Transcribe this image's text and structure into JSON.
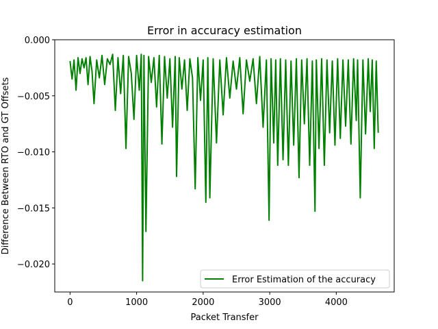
{
  "chart_data": {
    "type": "line",
    "title": "Error in accuracy estimation",
    "xlabel": "Packet Transfer",
    "ylabel": "Difference Between RTO and GT Offsets",
    "xlim": [
      -230,
      4870
    ],
    "ylim": [
      -0.0225,
      0.0
    ],
    "xticks": [
      0,
      1000,
      2000,
      3000,
      4000
    ],
    "xtick_labels": [
      "0",
      "1000",
      "2000",
      "3000",
      "4000"
    ],
    "yticks": [
      0.0,
      -0.005,
      -0.01,
      -0.015,
      -0.02
    ],
    "ytick_labels": [
      "0.000",
      "−0.005",
      "−0.010",
      "−0.015",
      "−0.020"
    ],
    "grid": false,
    "legend_position": "lower-right",
    "series": [
      {
        "name": "Error Estimation of the accuracy",
        "color": "#008000",
        "x": [
          0,
          30,
          60,
          90,
          120,
          150,
          180,
          210,
          240,
          270,
          300,
          330,
          360,
          400,
          440,
          480,
          520,
          560,
          600,
          640,
          680,
          720,
          760,
          800,
          840,
          880,
          920,
          960,
          1000,
          1040,
          1070,
          1090,
          1110,
          1140,
          1180,
          1220,
          1260,
          1300,
          1340,
          1380,
          1420,
          1460,
          1500,
          1540,
          1580,
          1600,
          1640,
          1680,
          1720,
          1760,
          1800,
          1840,
          1880,
          1920,
          1960,
          2000,
          2040,
          2070,
          2100,
          2150,
          2200,
          2250,
          2300,
          2350,
          2400,
          2450,
          2500,
          2550,
          2600,
          2650,
          2700,
          2750,
          2800,
          2850,
          2900,
          2950,
          2990,
          3020,
          3060,
          3090,
          3120,
          3160,
          3200,
          3240,
          3280,
          3320,
          3360,
          3400,
          3440,
          3480,
          3520,
          3560,
          3600,
          3640,
          3680,
          3700,
          3740,
          3780,
          3820,
          3860,
          3900,
          3940,
          3980,
          4020,
          4060,
          4100,
          4140,
          4180,
          4220,
          4260,
          4300,
          4320,
          4360,
          4400,
          4440,
          4480,
          4510,
          4540,
          4570,
          4600,
          4630
        ],
        "y": [
          -0.0019,
          -0.0035,
          -0.0018,
          -0.0045,
          -0.0016,
          -0.003,
          -0.0017,
          -0.0025,
          -0.0016,
          -0.004,
          -0.0015,
          -0.0028,
          -0.0057,
          -0.0018,
          -0.0034,
          -0.0014,
          -0.004,
          -0.0017,
          -0.0022,
          -0.0013,
          -0.0063,
          -0.0016,
          -0.0048,
          -0.0014,
          -0.0097,
          -0.0015,
          -0.003,
          -0.0071,
          -0.0014,
          -0.0045,
          -0.0013,
          -0.0215,
          -0.0014,
          -0.0171,
          -0.0015,
          -0.0038,
          -0.0016,
          -0.006,
          -0.0014,
          -0.0093,
          -0.0015,
          -0.0052,
          -0.0017,
          -0.0078,
          -0.0015,
          -0.0122,
          -0.0016,
          -0.0044,
          -0.0018,
          -0.0063,
          -0.0017,
          -0.0034,
          -0.0133,
          -0.0016,
          -0.0054,
          -0.0018,
          -0.0145,
          -0.0016,
          -0.0141,
          -0.0017,
          -0.0092,
          -0.0018,
          -0.0067,
          -0.0016,
          -0.0052,
          -0.0019,
          -0.0044,
          -0.0016,
          -0.0066,
          -0.0018,
          -0.0037,
          -0.0017,
          -0.0057,
          -0.0015,
          -0.0078,
          -0.0018,
          -0.0161,
          -0.0017,
          -0.0092,
          -0.0018,
          -0.0112,
          -0.0017,
          -0.0107,
          -0.0018,
          -0.0112,
          -0.0019,
          -0.0094,
          -0.0017,
          -0.0123,
          -0.0018,
          -0.0075,
          -0.0017,
          -0.0112,
          -0.0019,
          -0.0153,
          -0.0018,
          -0.0097,
          -0.0017,
          -0.0112,
          -0.0018,
          -0.0083,
          -0.0019,
          -0.0094,
          -0.0017,
          -0.0088,
          -0.0018,
          -0.0077,
          -0.0018,
          -0.0093,
          -0.0017,
          -0.0072,
          -0.0018,
          -0.0141,
          -0.0018,
          -0.0084,
          -0.0017,
          -0.0064,
          -0.0018,
          -0.0097,
          -0.0019,
          -0.0083
        ]
      }
    ]
  }
}
